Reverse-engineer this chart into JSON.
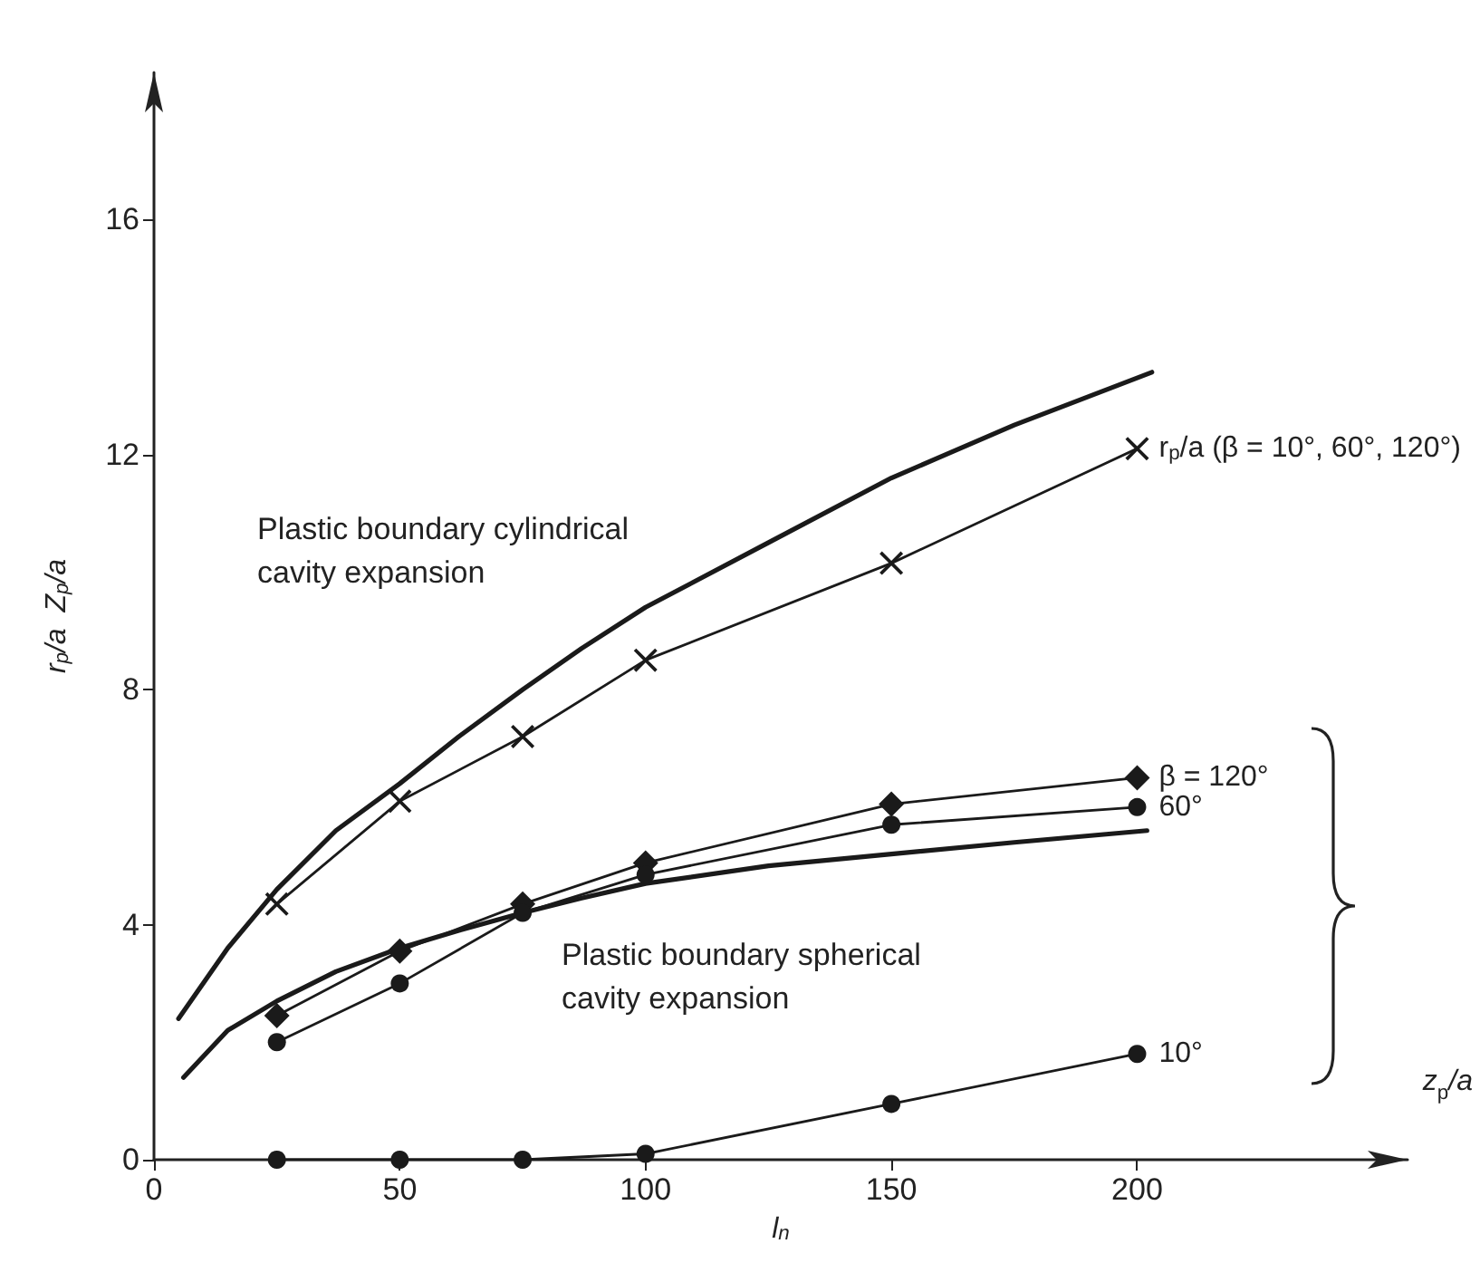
{
  "chart_data": {
    "type": "line",
    "xlabel": "l$_{n}$",
    "ylabel": "r$_{p}$/a  Z$_{p}$/a",
    "xlim": [
      0,
      255
    ],
    "ylim": [
      0,
      18.5
    ],
    "xticks": [
      0,
      50,
      100,
      150,
      200
    ],
    "yticks": [
      0,
      4,
      8,
      12,
      16
    ],
    "grid": false,
    "legend": false,
    "series": [
      {
        "color": "#1a1a1a",
        "marker": "none",
        "x": [
          5,
          15,
          25,
          37,
          50,
          62,
          75,
          87,
          100,
          125,
          150,
          175,
          203
        ],
        "values": [
          2.4,
          3.6,
          4.6,
          5.6,
          6.4,
          7.2,
          8.0,
          8.7,
          9.4,
          10.5,
          11.6,
          12.5,
          13.4
        ]
      },
      {
        "color": "#1a1a1a",
        "marker": "none",
        "x": [
          6,
          15,
          25,
          37,
          50,
          62,
          75,
          87,
          100,
          125,
          150,
          175,
          202
        ],
        "values": [
          1.4,
          2.2,
          2.7,
          3.2,
          3.6,
          3.9,
          4.2,
          4.45,
          4.7,
          5.0,
          5.2,
          5.4,
          5.6
        ]
      },
      {
        "name": "r$_{p}$/a (β = 10°, 60°, 120°)",
        "color": "#1a1a1a",
        "marker": "cross",
        "x": [
          25,
          50,
          75,
          100,
          150,
          200
        ],
        "values": [
          4.35,
          6.1,
          7.2,
          8.5,
          10.15,
          12.1
        ]
      },
      {
        "name": "β = 120°",
        "color": "#1a1a1a",
        "marker": "diamond",
        "x": [
          25,
          50,
          75,
          100,
          150,
          200
        ],
        "values": [
          2.45,
          3.55,
          4.35,
          5.05,
          6.05,
          6.5
        ]
      },
      {
        "name": "60°",
        "color": "#1a1a1a",
        "marker": "circle",
        "x": [
          25,
          50,
          75,
          100,
          150,
          200
        ],
        "values": [
          2.0,
          3.0,
          4.2,
          4.85,
          5.7,
          6.0
        ]
      },
      {
        "name": "10°",
        "color": "#1a1a1a",
        "marker": "circle",
        "x": [
          25,
          50,
          75,
          100,
          150,
          200
        ],
        "values": [
          0,
          0,
          0,
          0.1,
          0.95,
          1.8
        ]
      }
    ],
    "annotations": [
      "Plastic boundary cylindrical\ncavity expansion",
      "Plastic boundary spherical\ncavity expansion",
      "z$_{p}$/a"
    ]
  }
}
